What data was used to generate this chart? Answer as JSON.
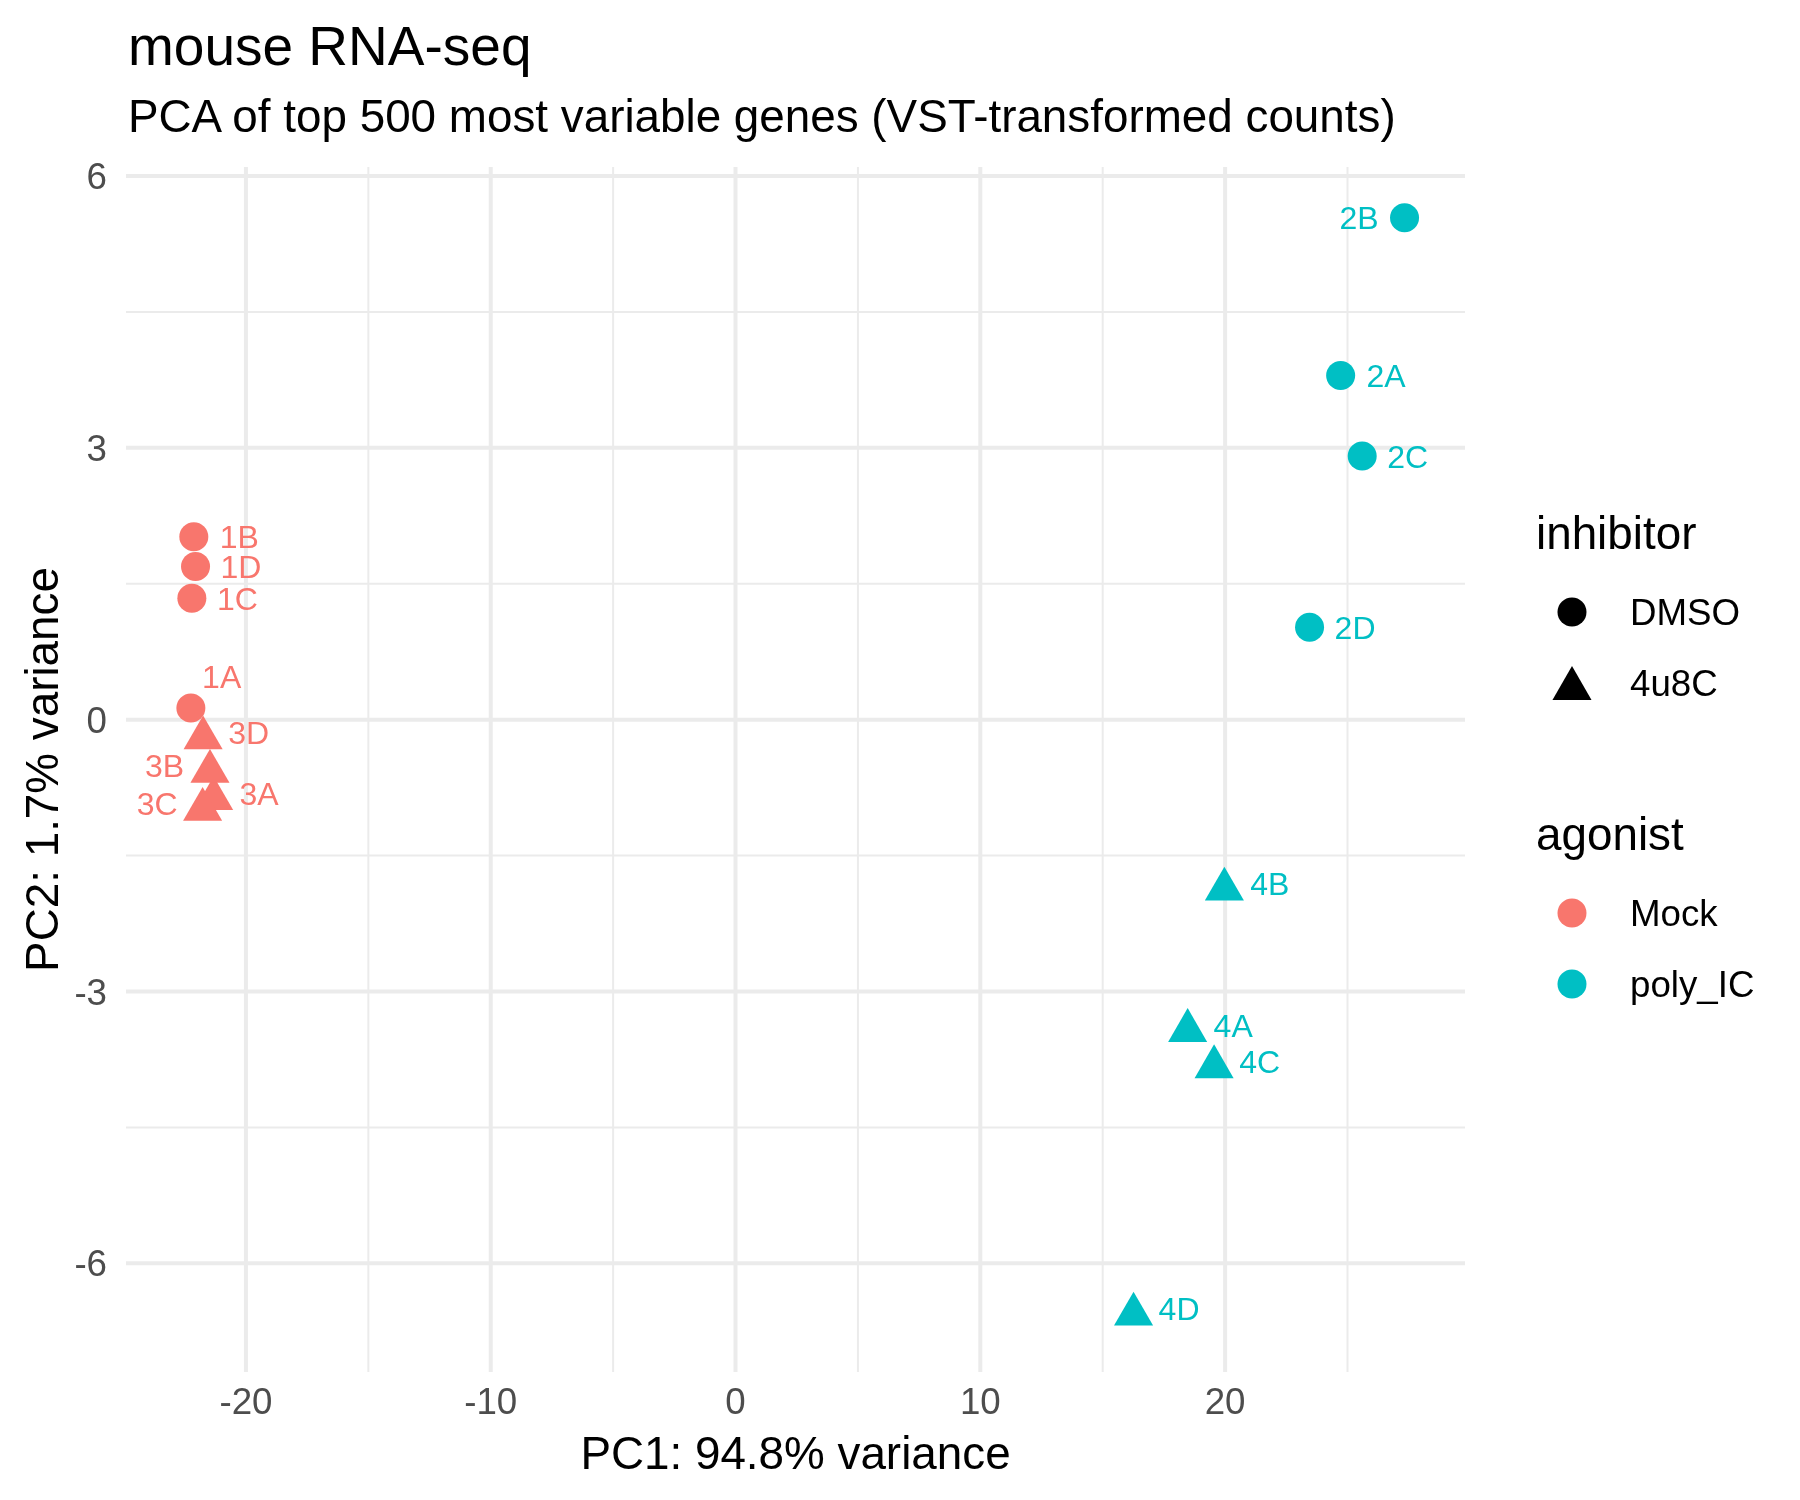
{
  "chart_data": {
    "type": "scatter",
    "title": "mouse RNA-seq",
    "subtitle": "PCA of top 500 most variable genes (VST-transformed counts)",
    "xlabel": "PC1: 94.8% variance",
    "ylabel": "PC2: 1.7% variance",
    "xlim": [
      -24.9,
      29.8
    ],
    "xticks": [
      -20,
      {
        "value": -15,
        "label": null
      },
      -10,
      {
        "value": -5,
        "label": null
      },
      0,
      {
        "value": 5,
        "label": null
      },
      10,
      {
        "value": 15,
        "label": null
      },
      20,
      {
        "value": 25,
        "label": null
      }
    ],
    "ylim": [
      -7.2,
      6.1
    ],
    "yticks": [
      -6,
      {
        "value": -4.5,
        "label": null
      },
      -3,
      {
        "value": -1.5,
        "label": null
      },
      0,
      {
        "value": 1.5,
        "label": null
      },
      3,
      {
        "value": 4.5,
        "label": null
      },
      6
    ],
    "grid": true,
    "legend": "right",
    "legend_title": "agonist",
    "series": [
      {
        "name": "Mock",
        "color": "#f8766d",
        "marker": "circle",
        "x": [
          -22.25,
          -22.13,
          -22.21,
          -22.06
        ],
        "values": [
          0.13,
          2.02,
          1.34,
          1.69
        ]
      },
      {
        "name": "poly_IC",
        "color": "#00bfc4",
        "marker": "circle",
        "x": [
          24.72,
          27.33,
          25.6,
          23.45
        ],
        "values": [
          3.8,
          5.54,
          2.91,
          1.02
        ]
      },
      {
        "color": "#f8766d",
        "marker": "triangle",
        "x": [
          -21.32,
          -21.47,
          -21.77,
          -21.75
        ],
        "values": [
          -0.81,
          -0.51,
          -0.93,
          -0.14
        ]
      },
      {
        "color": "#00bfc4",
        "marker": "triangle",
        "x": [
          18.47,
          19.97,
          19.55,
          16.26
        ],
        "values": [
          -3.37,
          -1.81,
          -3.77,
          -6.5
        ]
      }
    ],
    "annotations": [
      "inhibitor",
      "DMSO",
      "4u8C",
      {
        "text": "1A",
        "x": -22.25,
        "y": 0.13
      },
      {
        "text": "1B",
        "x": -22.13,
        "y": 2.02
      },
      {
        "text": "1C",
        "x": -22.21,
        "y": 1.34
      },
      {
        "text": "1D",
        "x": -22.06,
        "y": 1.69
      },
      {
        "text": "2A",
        "x": 24.72,
        "y": 3.8
      },
      {
        "text": "2B",
        "x": 27.33,
        "y": 5.54
      },
      {
        "text": "2C",
        "x": 25.6,
        "y": 2.91
      },
      {
        "text": "2D",
        "x": 23.45,
        "y": 1.02
      },
      {
        "text": "3A",
        "x": -21.32,
        "y": -0.81
      },
      {
        "text": "3B",
        "x": -21.47,
        "y": -0.51
      },
      {
        "text": "3C",
        "x": -21.77,
        "y": -0.93
      },
      {
        "text": "3D",
        "x": -21.75,
        "y": -0.14
      },
      {
        "text": "4A",
        "x": 18.47,
        "y": -3.37
      },
      {
        "text": "4B",
        "x": 19.97,
        "y": -1.81
      },
      {
        "text": "4C",
        "x": 19.55,
        "y": -3.77
      },
      {
        "text": "4D",
        "x": 16.26,
        "y": -6.5
      }
    ]
  }
}
